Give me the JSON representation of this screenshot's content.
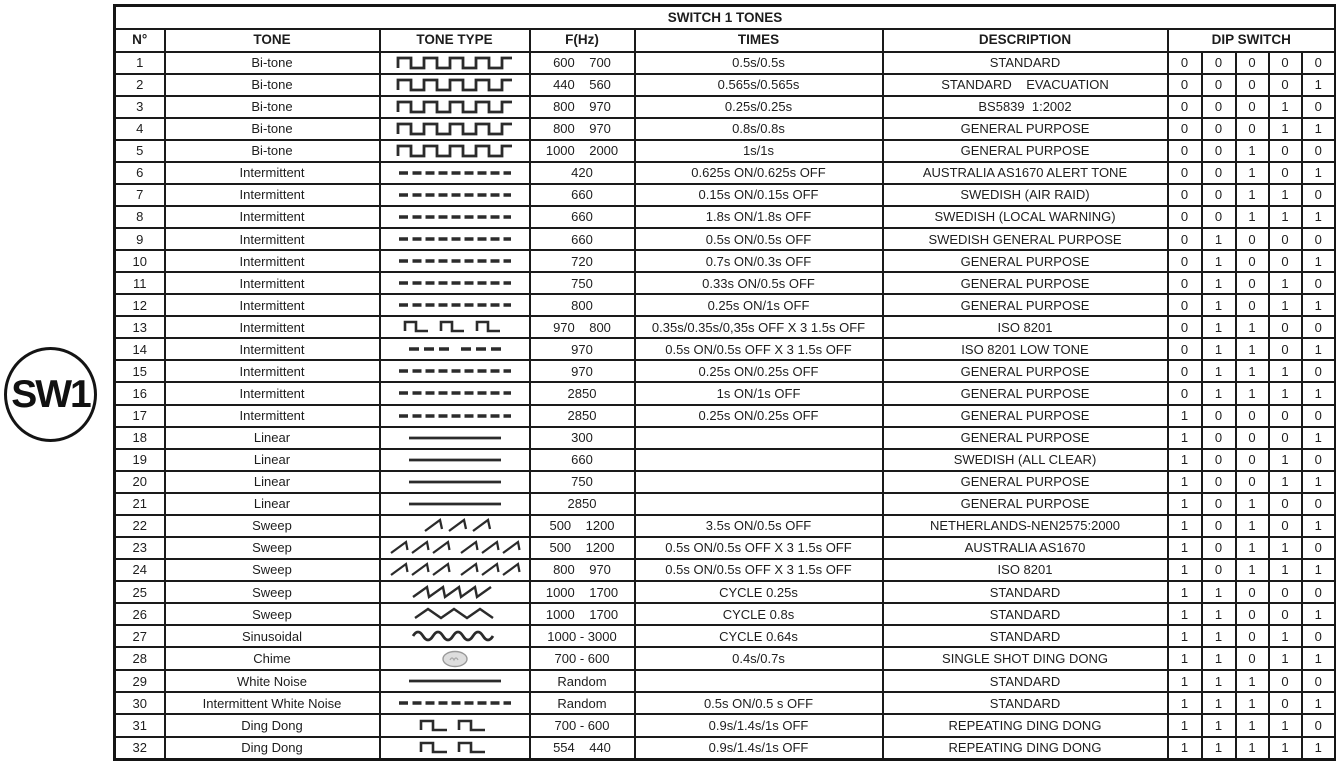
{
  "title": "SWITCH 1 TONES",
  "sw_label": "SW1",
  "columns": [
    "N°",
    "TONE",
    "TONE TYPE",
    "F(Hz)",
    "TIMES",
    "DESCRIPTION",
    "DIP SWITCH"
  ],
  "icon_stroke_color": "#2b2b2b",
  "rows": [
    {
      "n": "1",
      "tone": "Bi-tone",
      "icon": "square-wave",
      "f": "600    700",
      "times": "0.5s/0.5s",
      "desc": "STANDARD",
      "dip": "00000"
    },
    {
      "n": "2",
      "tone": "Bi-tone",
      "icon": "square-wave",
      "f": "440    560",
      "times": "0.565s/0.565s",
      "desc": "STANDARD    EVACUATION",
      "dip": "00001"
    },
    {
      "n": "3",
      "tone": "Bi-tone",
      "icon": "square-wave",
      "f": "800    970",
      "times": "0.25s/0.25s",
      "desc": "BS5839  1:2002",
      "dip": "00010"
    },
    {
      "n": "4",
      "tone": "Bi-tone",
      "icon": "square-wave",
      "f": "800    970",
      "times": "0.8s/0.8s",
      "desc": "GENERAL PURPOSE",
      "dip": "00011"
    },
    {
      "n": "5",
      "tone": "Bi-tone",
      "icon": "square-wave",
      "f": "1000    2000",
      "times": "1s/1s",
      "desc": "GENERAL PURPOSE",
      "dip": "00100"
    },
    {
      "n": "6",
      "tone": "Intermittent",
      "icon": "dashes",
      "f": "420",
      "times": "0.625s ON/0.625s OFF",
      "desc": "AUSTRALIA AS1670 ALERT TONE",
      "dip": "00101"
    },
    {
      "n": "7",
      "tone": "Intermittent",
      "icon": "dashes",
      "f": "660",
      "times": "0.15s ON/0.15s OFF",
      "desc": "SWEDISH (AIR RAID)",
      "dip": "00110"
    },
    {
      "n": "8",
      "tone": "Intermittent",
      "icon": "dashes",
      "f": "660",
      "times": "1.8s ON/1.8s OFF",
      "desc": "SWEDISH (LOCAL WARNING)",
      "dip": "00111"
    },
    {
      "n": "9",
      "tone": "Intermittent",
      "icon": "dashes",
      "f": "660",
      "times": "0.5s ON/0.5s OFF",
      "desc": "SWEDISH GENERAL PURPOSE",
      "dip": "01000"
    },
    {
      "n": "10",
      "tone": "Intermittent",
      "icon": "dashes",
      "f": "720",
      "times": "0.7s ON/0.3s OFF",
      "desc": "GENERAL PURPOSE",
      "dip": "01001"
    },
    {
      "n": "11",
      "tone": "Intermittent",
      "icon": "dashes",
      "f": "750",
      "times": "0.33s ON/0.5s OFF",
      "desc": "GENERAL PURPOSE",
      "dip": "01010"
    },
    {
      "n": "12",
      "tone": "Intermittent",
      "icon": "dashes",
      "f": "800",
      "times": "0.25s ON/1s OFF",
      "desc": "GENERAL PURPOSE",
      "dip": "01011"
    },
    {
      "n": "13",
      "tone": "Intermittent",
      "icon": "pulse-train",
      "f": "970    800",
      "times": "0.35s/0.35s/0,35s OFF X 3 1.5s OFF",
      "desc": "ISO 8201",
      "dip": "01100"
    },
    {
      "n": "14",
      "tone": "Intermittent",
      "icon": "dash-groups",
      "f": "970",
      "times": "0.5s ON/0.5s OFF X 3 1.5s OFF",
      "desc": "ISO 8201 LOW TONE",
      "dip": "01101"
    },
    {
      "n": "15",
      "tone": "Intermittent",
      "icon": "dashes",
      "f": "970",
      "times": "0.25s ON/0.25s OFF",
      "desc": "GENERAL PURPOSE",
      "dip": "01110"
    },
    {
      "n": "16",
      "tone": "Intermittent",
      "icon": "dashes",
      "f": "2850",
      "times": "1s ON/1s OFF",
      "desc": "GENERAL PURPOSE",
      "dip": "01111"
    },
    {
      "n": "17",
      "tone": "Intermittent",
      "icon": "dashes",
      "f": "2850",
      "times": "0.25s ON/0.25s OFF",
      "desc": "GENERAL PURPOSE",
      "dip": "10000"
    },
    {
      "n": "18",
      "tone": "Linear",
      "icon": "solid-line",
      "f": "300",
      "times": "",
      "desc": "GENERAL PURPOSE",
      "dip": "10001"
    },
    {
      "n": "19",
      "tone": "Linear",
      "icon": "solid-line",
      "f": "660",
      "times": "",
      "desc": "SWEDISH (ALL CLEAR)",
      "dip": "10010"
    },
    {
      "n": "20",
      "tone": "Linear",
      "icon": "solid-line",
      "f": "750",
      "times": "",
      "desc": "GENERAL PURPOSE",
      "dip": "10011"
    },
    {
      "n": "21",
      "tone": "Linear",
      "icon": "solid-line",
      "f": "2850",
      "times": "",
      "desc": "GENERAL PURPOSE",
      "dip": "10100"
    },
    {
      "n": "22",
      "tone": "Sweep",
      "icon": "ramps-three",
      "f": "500    1200",
      "times": "3.5s ON/0.5s OFF",
      "desc": "NETHERLANDS-NEN2575:2000",
      "dip": "10101"
    },
    {
      "n": "23",
      "tone": "Sweep",
      "icon": "ramps-double-group",
      "f": "500    1200",
      "times": "0.5s ON/0.5s OFF X 3 1.5s OFF",
      "desc": "AUSTRALIA AS1670",
      "dip": "10110"
    },
    {
      "n": "24",
      "tone": "Sweep",
      "icon": "ramps-double-group",
      "f": "800    970",
      "times": "0.5s ON/0.5s OFF X 3 1.5s OFF",
      "desc": "ISO 8201",
      "dip": "10111"
    },
    {
      "n": "25",
      "tone": "Sweep",
      "icon": "sawtooth-wave",
      "f": "1000    1700",
      "times": "CYCLE 0.25s",
      "desc": "STANDARD",
      "dip": "11000"
    },
    {
      "n": "26",
      "tone": "Sweep",
      "icon": "triangle-wave",
      "f": "1000    1700",
      "times": "CYCLE 0.8s",
      "desc": "STANDARD",
      "dip": "11001"
    },
    {
      "n": "27",
      "tone": "Sinusoidal",
      "icon": "sine-wave",
      "f": "1000 - 3000",
      "times": "CYCLE 0.64s",
      "desc": "STANDARD",
      "dip": "11010"
    },
    {
      "n": "28",
      "tone": "Chime",
      "icon": "chime",
      "f": "700 - 600",
      "times": "0.4s/0.7s",
      "desc": "SINGLE SHOT DING DONG",
      "dip": "11011"
    },
    {
      "n": "29",
      "tone": "White Noise",
      "icon": "solid-line",
      "f": "Random",
      "times": "",
      "desc": "STANDARD",
      "dip": "11100"
    },
    {
      "n": "30",
      "tone": "Intermittent White Noise",
      "icon": "dashes",
      "f": "Random",
      "times": "0.5s ON/0.5 s OFF",
      "desc": "STANDARD",
      "dip": "11101"
    },
    {
      "n": "31",
      "tone": "Ding Dong",
      "icon": "pulse-pair",
      "f": "700 - 600",
      "times": "0.9s/1.4s/1s OFF",
      "desc": "REPEATING DING DONG",
      "dip": "11110"
    },
    {
      "n": "32",
      "tone": "Ding Dong",
      "icon": "pulse-pair",
      "f": "554    440",
      "times": "0.9s/1.4s/1s OFF",
      "desc": "REPEATING DING DONG",
      "dip": "11111"
    }
  ]
}
